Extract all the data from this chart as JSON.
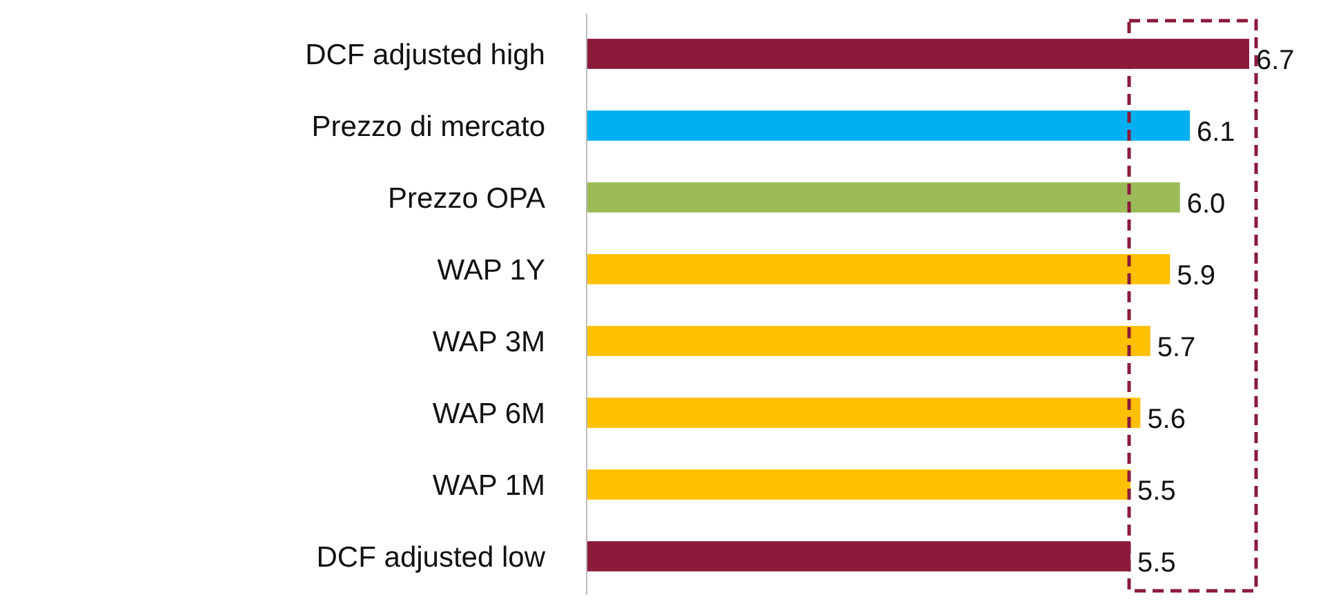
{
  "chart_data": {
    "type": "bar",
    "orientation": "horizontal",
    "categories": [
      "DCF adjusted high",
      "Prezzo di mercato",
      "Prezzo OPA",
      "WAP 1Y",
      "WAP 3M",
      "WAP 6M",
      "WAP 1M",
      "DCF adjusted low"
    ],
    "values": [
      6.7,
      6.1,
      6.0,
      5.9,
      5.7,
      5.6,
      5.5,
      5.5
    ],
    "value_labels": [
      "6.7",
      "6.1",
      "6.0",
      "5.9",
      "5.7",
      "5.6",
      "5.5",
      "5.5"
    ],
    "colors": [
      "#8b1a3b",
      "#00b0f0",
      "#9bbb59",
      "#ffc000",
      "#ffc000",
      "#ffc000",
      "#ffc000",
      "#8b1a3b"
    ],
    "tick_labels": "y"
  }
}
